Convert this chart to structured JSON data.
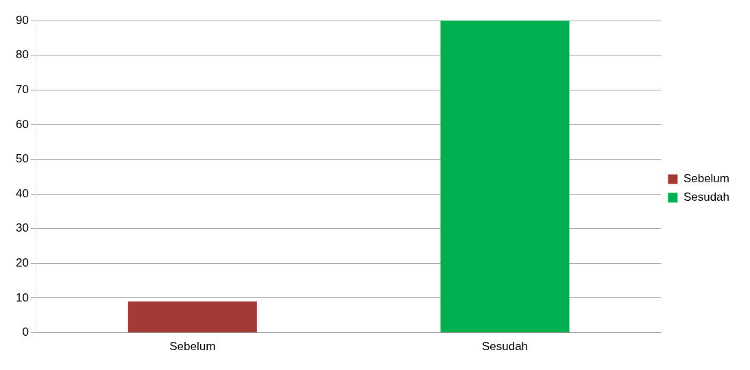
{
  "chart_data": {
    "type": "bar",
    "categories": [
      "Sebelum",
      "Sesudah"
    ],
    "series": [
      {
        "name": "Sebelum",
        "color": "#a33a36",
        "values": [
          9,
          null
        ]
      },
      {
        "name": "Sesudah",
        "color": "#00b050",
        "values": [
          null,
          90
        ]
      }
    ],
    "ylim": [
      0,
      90
    ],
    "yticks": [
      0,
      10,
      20,
      30,
      40,
      50,
      60,
      70,
      80,
      90
    ],
    "grid": "y",
    "legend": "right"
  }
}
